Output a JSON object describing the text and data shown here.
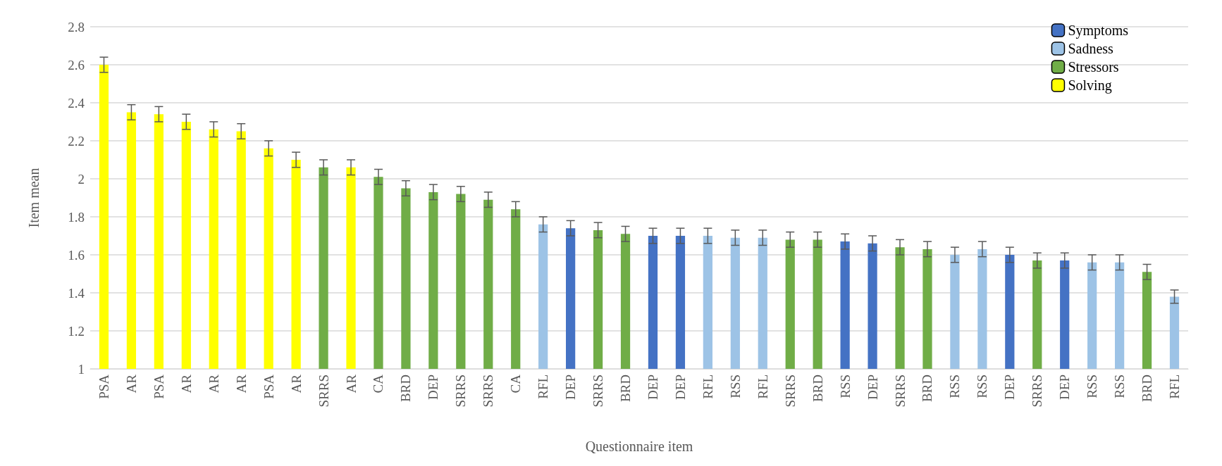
{
  "chart_data": {
    "type": "bar",
    "xlabel": "Questionnaire item",
    "ylabel": "Item mean",
    "categories": [
      "PSA",
      "AR",
      "PSA",
      "AR",
      "AR",
      "AR",
      "PSA",
      "AR",
      "SRRS",
      "AR",
      "CA",
      "BRD",
      "DEP",
      "SRRS",
      "SRRS",
      "CA",
      "RFL",
      "DEP",
      "SRRS",
      "BRD",
      "DEP",
      "DEP",
      "RFL",
      "RSS",
      "RFL",
      "SRRS",
      "BRD",
      "RSS",
      "DEP",
      "SRRS",
      "BRD",
      "RSS",
      "RSS",
      "DEP",
      "SRRS",
      "DEP",
      "RSS",
      "RSS",
      "BRD",
      "RFL"
    ],
    "series": [
      {
        "name": "Symptoms",
        "color": "#4472c4",
        "values": [
          null,
          null,
          null,
          null,
          null,
          null,
          null,
          null,
          null,
          null,
          null,
          null,
          null,
          null,
          null,
          null,
          null,
          1.74,
          null,
          null,
          1.7,
          1.7,
          null,
          null,
          null,
          null,
          null,
          1.67,
          1.66,
          null,
          null,
          null,
          null,
          1.6,
          null,
          1.57,
          null,
          null,
          null,
          null
        ],
        "errors": [
          null,
          null,
          null,
          null,
          null,
          null,
          null,
          null,
          null,
          null,
          null,
          null,
          null,
          null,
          null,
          null,
          null,
          0.04,
          null,
          null,
          0.04,
          0.04,
          null,
          null,
          null,
          null,
          null,
          0.04,
          0.04,
          null,
          null,
          null,
          null,
          0.04,
          null,
          0.04,
          null,
          null,
          null,
          null
        ]
      },
      {
        "name": "Sadness",
        "color": "#9dc3e6",
        "values": [
          null,
          null,
          null,
          null,
          null,
          null,
          null,
          null,
          null,
          null,
          null,
          null,
          null,
          null,
          null,
          null,
          1.76,
          null,
          null,
          null,
          null,
          null,
          1.7,
          1.69,
          1.69,
          null,
          null,
          null,
          null,
          null,
          null,
          1.6,
          1.63,
          null,
          null,
          null,
          1.56,
          1.56,
          null,
          1.38
        ],
        "errors": [
          null,
          null,
          null,
          null,
          null,
          null,
          null,
          null,
          null,
          null,
          null,
          null,
          null,
          null,
          null,
          null,
          0.04,
          null,
          null,
          null,
          null,
          null,
          0.04,
          0.04,
          0.04,
          null,
          null,
          null,
          null,
          null,
          null,
          0.04,
          0.04,
          null,
          null,
          null,
          0.04,
          0.04,
          null,
          0.035
        ]
      },
      {
        "name": "Stressors",
        "color": "#70ad47",
        "values": [
          null,
          null,
          null,
          null,
          null,
          null,
          null,
          null,
          2.06,
          null,
          2.01,
          1.95,
          1.93,
          1.92,
          1.89,
          1.84,
          null,
          null,
          1.73,
          1.71,
          null,
          null,
          null,
          null,
          null,
          1.68,
          1.68,
          null,
          null,
          1.64,
          1.63,
          null,
          null,
          null,
          1.57,
          null,
          null,
          null,
          1.51,
          null
        ],
        "errors": [
          null,
          null,
          null,
          null,
          null,
          null,
          null,
          null,
          0.04,
          null,
          0.04,
          0.04,
          0.04,
          0.04,
          0.04,
          0.04,
          null,
          null,
          0.04,
          0.04,
          null,
          null,
          null,
          null,
          null,
          0.04,
          0.04,
          null,
          null,
          0.04,
          0.04,
          null,
          null,
          null,
          0.04,
          null,
          null,
          null,
          0.04,
          null
        ]
      },
      {
        "name": "Solving",
        "color": "#ffff00",
        "values": [
          2.6,
          2.35,
          2.34,
          2.3,
          2.26,
          2.25,
          2.16,
          2.1,
          null,
          2.06,
          null,
          null,
          null,
          null,
          null,
          null,
          null,
          null,
          null,
          null,
          null,
          null,
          null,
          null,
          null,
          null,
          null,
          null,
          null,
          null,
          null,
          null,
          null,
          null,
          null,
          null,
          null,
          null,
          null,
          null
        ],
        "errors": [
          0.04,
          0.04,
          0.04,
          0.04,
          0.04,
          0.04,
          0.04,
          0.04,
          null,
          0.04,
          null,
          null,
          null,
          null,
          null,
          null,
          null,
          null,
          null,
          null,
          null,
          null,
          null,
          null,
          null,
          null,
          null,
          null,
          null,
          null,
          null,
          null,
          null,
          null,
          null,
          null,
          null,
          null,
          null,
          null
        ]
      }
    ],
    "ylim": [
      1,
      2.8
    ],
    "yticks": [
      1,
      1.2,
      1.4,
      1.6,
      1.8,
      2,
      2.2,
      2.4,
      2.6,
      2.8
    ],
    "grid": "y",
    "legend": "top right"
  }
}
